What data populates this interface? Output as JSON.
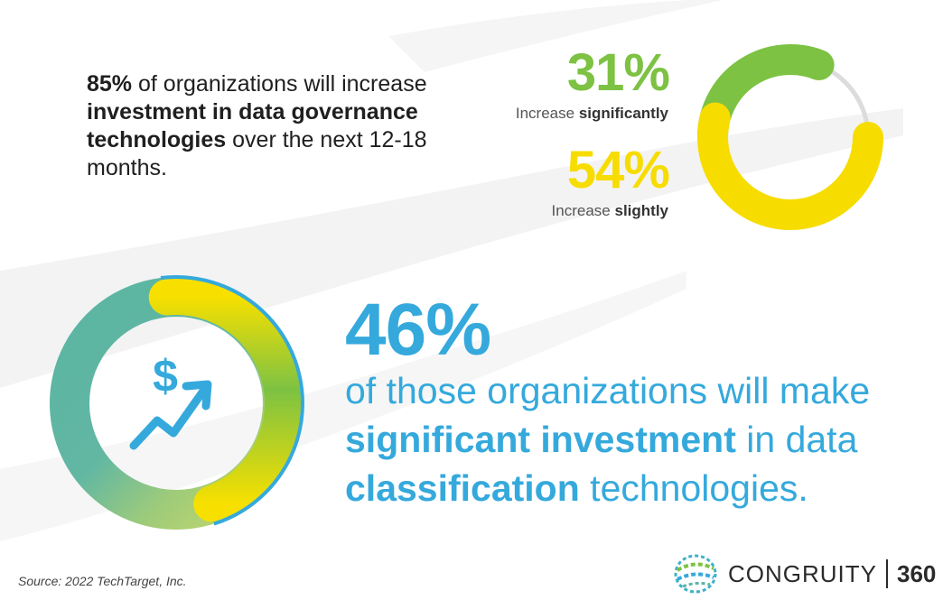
{
  "statement": {
    "pct": "85%",
    "part1": " of organizations will increase ",
    "bold": "investment in data governance technologies",
    "part2": " over the  next 12-18 months."
  },
  "stat_significant": {
    "value": "31%",
    "label_prefix": "Increase ",
    "label_bold": "significantly",
    "fraction": 0.31,
    "color": "#7dc243"
  },
  "stat_slight": {
    "value": "54%",
    "label_prefix": "Increase ",
    "label_bold": "slightly",
    "fraction": 0.54,
    "color": "#f7dc00"
  },
  "big_stat": {
    "value": "46%",
    "fraction": 0.46,
    "line_intro": "of those organizations will make ",
    "bold1": "significant investment",
    "mid": " in data ",
    "bold2": "classification",
    "end": " technologies."
  },
  "source": "Source: 2022 TechTarget, Inc.",
  "logo": {
    "name": "CONGRUITY",
    "number": "360"
  },
  "icons": {
    "dollar": "$",
    "trend": "trend-up-arrow-icon"
  }
}
